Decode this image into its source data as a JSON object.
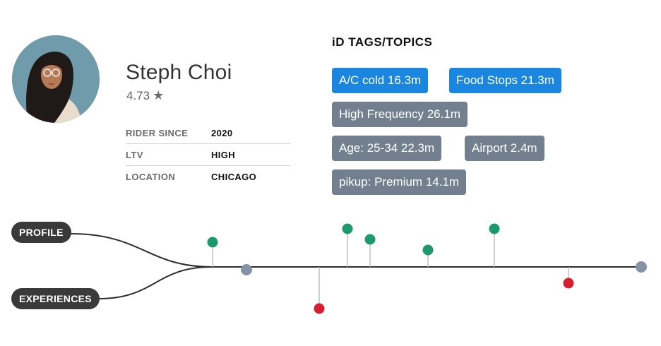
{
  "profile": {
    "name": "Steph Choi",
    "rating": "4.73",
    "rating_icon": "star-icon",
    "details": [
      {
        "label": "RIDER SINCE",
        "value": "2020"
      },
      {
        "label": "LTV",
        "value": "HIGH"
      },
      {
        "label": "LOCATION",
        "value": "CHICAGO"
      }
    ]
  },
  "tags": {
    "title": "iD TAGS/TOPICS",
    "items": [
      {
        "label": "A/C cold 16.3m",
        "color": "#1a86e0"
      },
      {
        "label": "Food Stops 21.3m",
        "color": "#1a86e0"
      },
      {
        "label": "High Frequency 26.1m",
        "color": "#727f8e"
      },
      {
        "label": "Age: 25-34 22.3m",
        "color": "#727f8e"
      },
      {
        "label": "Airport 2.4m",
        "color": "#727f8e"
      },
      {
        "label": "pikup: Premium 14.1m",
        "color": "#727f8e"
      }
    ]
  },
  "timeline": {
    "labels": {
      "profile": "PROFILE",
      "experiences": "EXPERIENCES"
    },
    "colors": {
      "positive": "#1d9a6c",
      "negative": "#d61f2e",
      "endpoint": "#8494a5",
      "line": "#2d2d2d"
    }
  }
}
